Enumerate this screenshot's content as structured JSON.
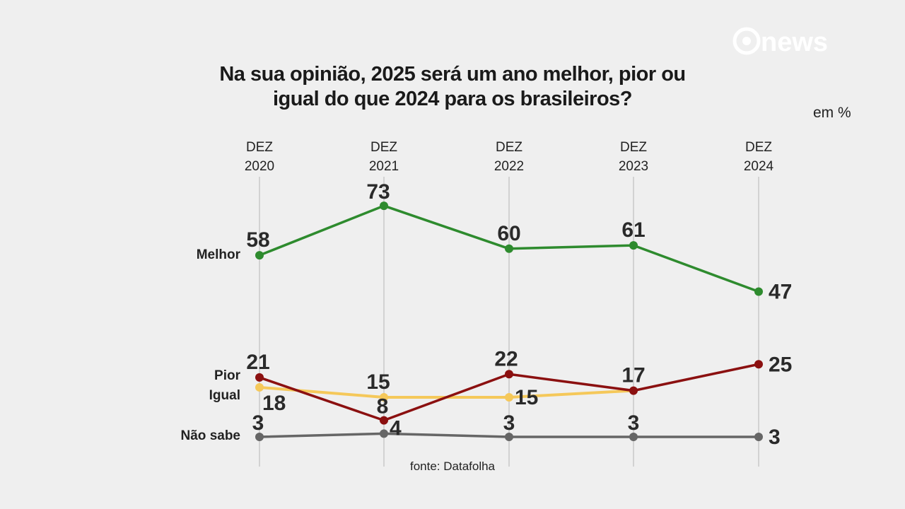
{
  "title_lines": [
    "Na sua opinião, 2025 será um ano melhor, pior ou",
    "igual do que 2024 para os brasileiros?"
  ],
  "unit": "em %",
  "source": "fonte: Datafolha",
  "logo": "g news",
  "chart_data": {
    "type": "line",
    "title": "Na sua opinião, 2025 será um ano melhor, pior ou igual do que 2024 para os brasileiros?",
    "categories": [
      "DEZ 2020",
      "DEZ 2021",
      "DEZ 2022",
      "DEZ 2023",
      "DEZ 2024"
    ],
    "category_lines": [
      [
        "DEZ",
        "2020"
      ],
      [
        "DEZ",
        "2021"
      ],
      [
        "DEZ",
        "2022"
      ],
      [
        "DEZ",
        "2023"
      ],
      [
        "DEZ",
        "2024"
      ]
    ],
    "ylabel": "em %",
    "grid": "vertical",
    "series": [
      {
        "name": "Melhor",
        "color": "#2e8b2e",
        "values": [
          58,
          73,
          60,
          61,
          47
        ],
        "labels": [
          "58",
          "73",
          "60",
          "61",
          "47"
        ]
      },
      {
        "name": "Pior",
        "color": "#8b1010",
        "values": [
          21,
          8,
          22,
          17,
          25
        ],
        "labels": [
          "21",
          "8",
          "22",
          "17",
          "25"
        ]
      },
      {
        "name": "Igual",
        "color": "#f5c85a",
        "values": [
          18,
          15,
          15,
          17,
          null
        ],
        "labels": [
          "18",
          "15",
          "15",
          "",
          ""
        ]
      },
      {
        "name": "Não sabe",
        "color": "#666666",
        "values": [
          3,
          4,
          3,
          3,
          3
        ],
        "labels": [
          "3",
          "4",
          "3",
          "3",
          "3"
        ]
      }
    ]
  }
}
